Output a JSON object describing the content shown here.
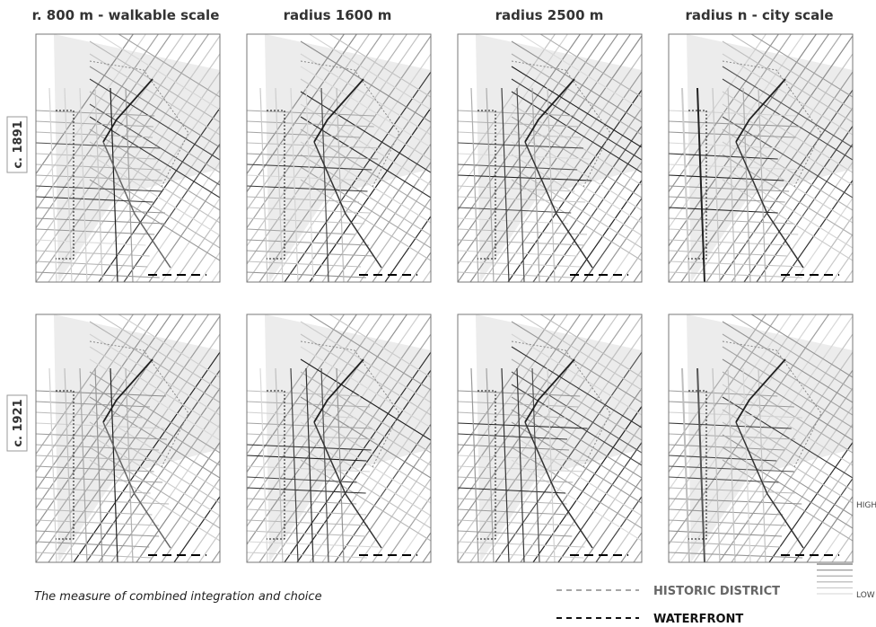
{
  "columns": [
    "r. 800 m - walkable scale",
    "radius 1600 m",
    "radius 2500 m",
    "radius n - city scale"
  ],
  "rows": [
    "c. 1891",
    "c. 1921"
  ],
  "caption": "The measure of combined integration and choice",
  "legend": {
    "high": "HIGH",
    "low": "LOW",
    "historic_district": "HISTORIC DISTRICT",
    "waterfront": "WATERFRONT"
  }
}
